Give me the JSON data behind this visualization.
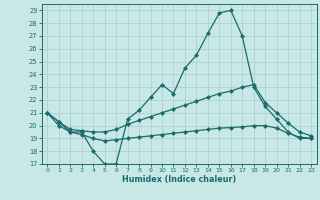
{
  "xlabel": "Humidex (Indice chaleur)",
  "bg_color": "#c8e8e8",
  "line_color": "#1a6b6b",
  "grid_color": "#a8cccc",
  "xlim": [
    -0.5,
    23.5
  ],
  "ylim": [
    17,
    29.5
  ],
  "yticks": [
    17,
    18,
    19,
    20,
    21,
    22,
    23,
    24,
    25,
    26,
    27,
    28,
    29
  ],
  "xticks": [
    0,
    1,
    2,
    3,
    4,
    5,
    6,
    7,
    8,
    9,
    10,
    11,
    12,
    13,
    14,
    15,
    16,
    17,
    18,
    19,
    20,
    21,
    22,
    23
  ],
  "line1_x": [
    0,
    1,
    2,
    3,
    4,
    5,
    6,
    7,
    8,
    9,
    10,
    11,
    12,
    13,
    14,
    15,
    16,
    17,
    18,
    19,
    20,
    21,
    22,
    23
  ],
  "line1_y": [
    21.0,
    20.0,
    19.5,
    19.5,
    18.0,
    17.0,
    17.0,
    20.5,
    21.2,
    22.2,
    23.2,
    22.5,
    24.5,
    25.5,
    27.2,
    28.8,
    29.0,
    27.0,
    23.0,
    21.5,
    20.5,
    19.5,
    19.0,
    19.0
  ],
  "line2_x": [
    0,
    1,
    2,
    3,
    4,
    5,
    6,
    7,
    8,
    9,
    10,
    11,
    12,
    13,
    14,
    15,
    16,
    17,
    18,
    19,
    20,
    21,
    22,
    23
  ],
  "line2_y": [
    21.0,
    20.3,
    19.7,
    19.6,
    19.5,
    19.5,
    19.7,
    20.1,
    20.4,
    20.7,
    21.0,
    21.3,
    21.6,
    21.9,
    22.2,
    22.5,
    22.7,
    23.0,
    23.2,
    21.8,
    21.0,
    20.2,
    19.5,
    19.2
  ],
  "line3_x": [
    0,
    1,
    2,
    3,
    4,
    5,
    6,
    7,
    8,
    9,
    10,
    11,
    12,
    13,
    14,
    15,
    16,
    17,
    18,
    19,
    20,
    21,
    22,
    23
  ],
  "line3_y": [
    21.0,
    20.3,
    19.5,
    19.3,
    19.0,
    18.8,
    18.9,
    19.0,
    19.1,
    19.2,
    19.3,
    19.4,
    19.5,
    19.6,
    19.7,
    19.8,
    19.85,
    19.9,
    20.0,
    20.0,
    19.8,
    19.4,
    19.1,
    19.0
  ]
}
